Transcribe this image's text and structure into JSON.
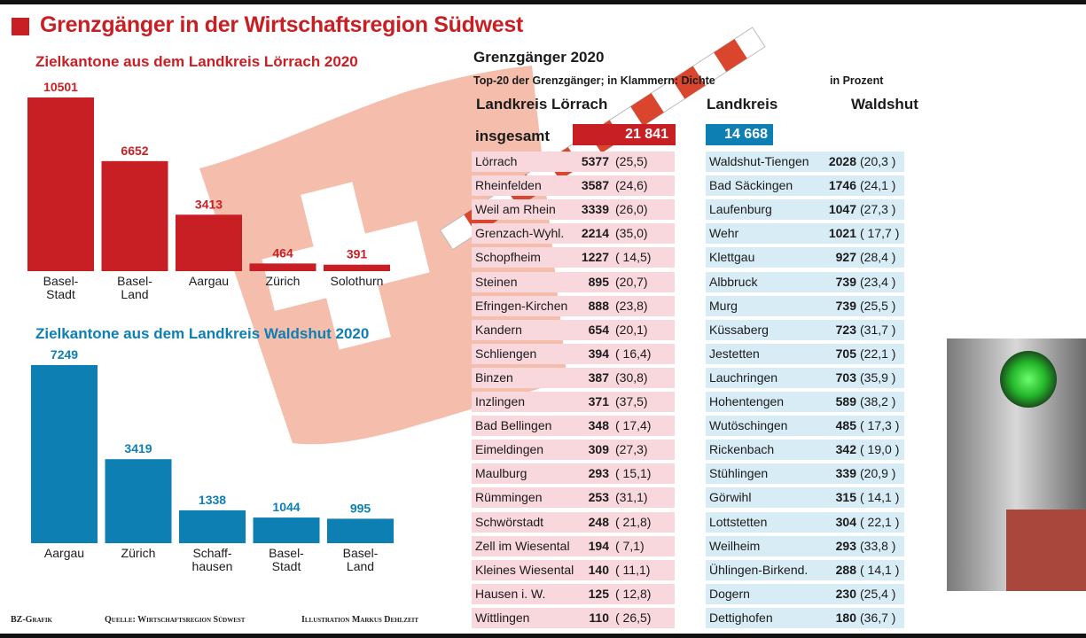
{
  "colors": {
    "red": "#c81f24",
    "blue": "#0e7fb3",
    "flag": "#f4b7a3"
  },
  "title": "Grenzgänger in der Wirtschaftsregion Südwest",
  "chart_data": [
    {
      "type": "bar",
      "title": "Zielkantone aus dem Landkreis Lörrach 2020",
      "categories": [
        "Basel-\nStadt",
        "Basel-\nLand",
        "Aargau",
        "Zürich",
        "Solothurn"
      ],
      "values": [
        10501,
        6652,
        3413,
        464,
        391
      ],
      "value_labels": [
        "10501",
        "6652",
        "3413",
        "464",
        "391"
      ],
      "ylim": [
        0,
        10501
      ],
      "color": "#c81f24"
    },
    {
      "type": "bar",
      "title": "Zielkantone aus dem Landkreis Waldshut 2020",
      "categories": [
        "Aargau",
        "Zürich",
        "Schaff-\nhausen",
        "Basel-\nStadt",
        "Basel-\nLand"
      ],
      "values": [
        7249,
        3419,
        1338,
        1044,
        995
      ],
      "value_labels": [
        "7249",
        "3419",
        "1338",
        "1044",
        "995"
      ],
      "ylim": [
        0,
        7249
      ],
      "color": "#0e7fb3"
    },
    {
      "type": "table",
      "title": "Grenzgänger 2020",
      "subtitle_left": "Top-20 der Grenzgänger; in Klammern: Dichte",
      "subtitle_right": "in Prozent",
      "left_header": "Landkreis Lörrach",
      "right_header_1": "Landkreis",
      "right_header_2": "Waldshut",
      "total_label": "insgesamt",
      "left_total": "21 841",
      "right_total": "14 668",
      "left_rows": [
        {
          "name": "Lörrach",
          "value": "5377",
          "pct": "(25,5)"
        },
        {
          "name": "Rheinfelden",
          "value": "3587",
          "pct": "(24,6)"
        },
        {
          "name": "Weil am Rhein",
          "value": "3339",
          "pct": "(26,0)"
        },
        {
          "name": "Grenzach-Wyhl.",
          "value": "2214",
          "pct": "(35,0)"
        },
        {
          "name": "Schopfheim",
          "value": "1227",
          "pct": "( 14,5)"
        },
        {
          "name": "Steinen",
          "value": "895",
          "pct": "(20,7)"
        },
        {
          "name": "Efringen-Kirchen",
          "value": "888",
          "pct": "(23,8)"
        },
        {
          "name": "Kandern",
          "value": "654",
          "pct": "(20,1)"
        },
        {
          "name": "Schliengen",
          "value": "394",
          "pct": "( 16,4)"
        },
        {
          "name": "Binzen",
          "value": "387",
          "pct": "(30,8)"
        },
        {
          "name": "Inzlingen",
          "value": "371",
          "pct": "(37,5)"
        },
        {
          "name": "Bad Bellingen",
          "value": "348",
          "pct": "( 17,4)"
        },
        {
          "name": "Eimeldingen",
          "value": "309",
          "pct": "(27,3)"
        },
        {
          "name": "Maulburg",
          "value": "293",
          "pct": "( 15,1)"
        },
        {
          "name": "Rümmingen",
          "value": "253",
          "pct": "(31,1)"
        },
        {
          "name": "Schwörstadt",
          "value": "248",
          "pct": "( 21,8)"
        },
        {
          "name": "Zell im Wiesental",
          "value": "194",
          "pct": "(   7,1)"
        },
        {
          "name": "Kleines Wiesental",
          "value": "140",
          "pct": "( 11,1)"
        },
        {
          "name": "Hausen i. W.",
          "value": "125",
          "pct": "( 12,8)"
        },
        {
          "name": "Wittlingen",
          "value": "110",
          "pct": "( 26,5)"
        }
      ],
      "right_rows": [
        {
          "name": "Waldshut-Tiengen",
          "value": "2028",
          "pct": "(20,3 )"
        },
        {
          "name": "Bad Säckingen",
          "value": "1746",
          "pct": "(24,1 )"
        },
        {
          "name": "Laufenburg",
          "value": "1047",
          "pct": "(27,3 )"
        },
        {
          "name": "Wehr",
          "value": "1021",
          "pct": "( 17,7 )"
        },
        {
          "name": "Klettgau",
          "value": "927",
          "pct": "(28,4 )"
        },
        {
          "name": "Albbruck",
          "value": "739",
          "pct": "(23,4 )"
        },
        {
          "name": "Murg",
          "value": "739",
          "pct": "(25,5 )"
        },
        {
          "name": "Küssaberg",
          "value": "723",
          "pct": "(31,7 )"
        },
        {
          "name": "Jestetten",
          "value": "705",
          "pct": "(22,1 )"
        },
        {
          "name": "Lauchringen",
          "value": "703",
          "pct": "(35,9 )"
        },
        {
          "name": "Hohentengen",
          "value": "589",
          "pct": "(38,2 )"
        },
        {
          "name": "Wutöschingen",
          "value": "485",
          "pct": "( 17,3 )"
        },
        {
          "name": "Rickenbach",
          "value": "342",
          "pct": "( 19,0 )"
        },
        {
          "name": "Stühlingen",
          "value": "339",
          "pct": "(20,9 )"
        },
        {
          "name": "Görwihl",
          "value": "315",
          "pct": "( 14,1 )"
        },
        {
          "name": "Lottstetten",
          "value": "304",
          "pct": "( 22,1 )"
        },
        {
          "name": "Weilheim",
          "value": "293",
          "pct": "(33,8 )"
        },
        {
          "name": "Ühlingen-Birkend.",
          "value": "288",
          "pct": "( 14,1 )"
        },
        {
          "name": "Dogern",
          "value": "230",
          "pct": "(25,4 )"
        },
        {
          "name": "Dettighofen",
          "value": "180",
          "pct": "(36,7 )"
        }
      ]
    }
  ],
  "footer": {
    "credit": "BZ-Grafik",
    "source": "Quelle: Wirtschaftsregion Südwest",
    "illustration": "Illustration Markus Dehlzeit"
  }
}
